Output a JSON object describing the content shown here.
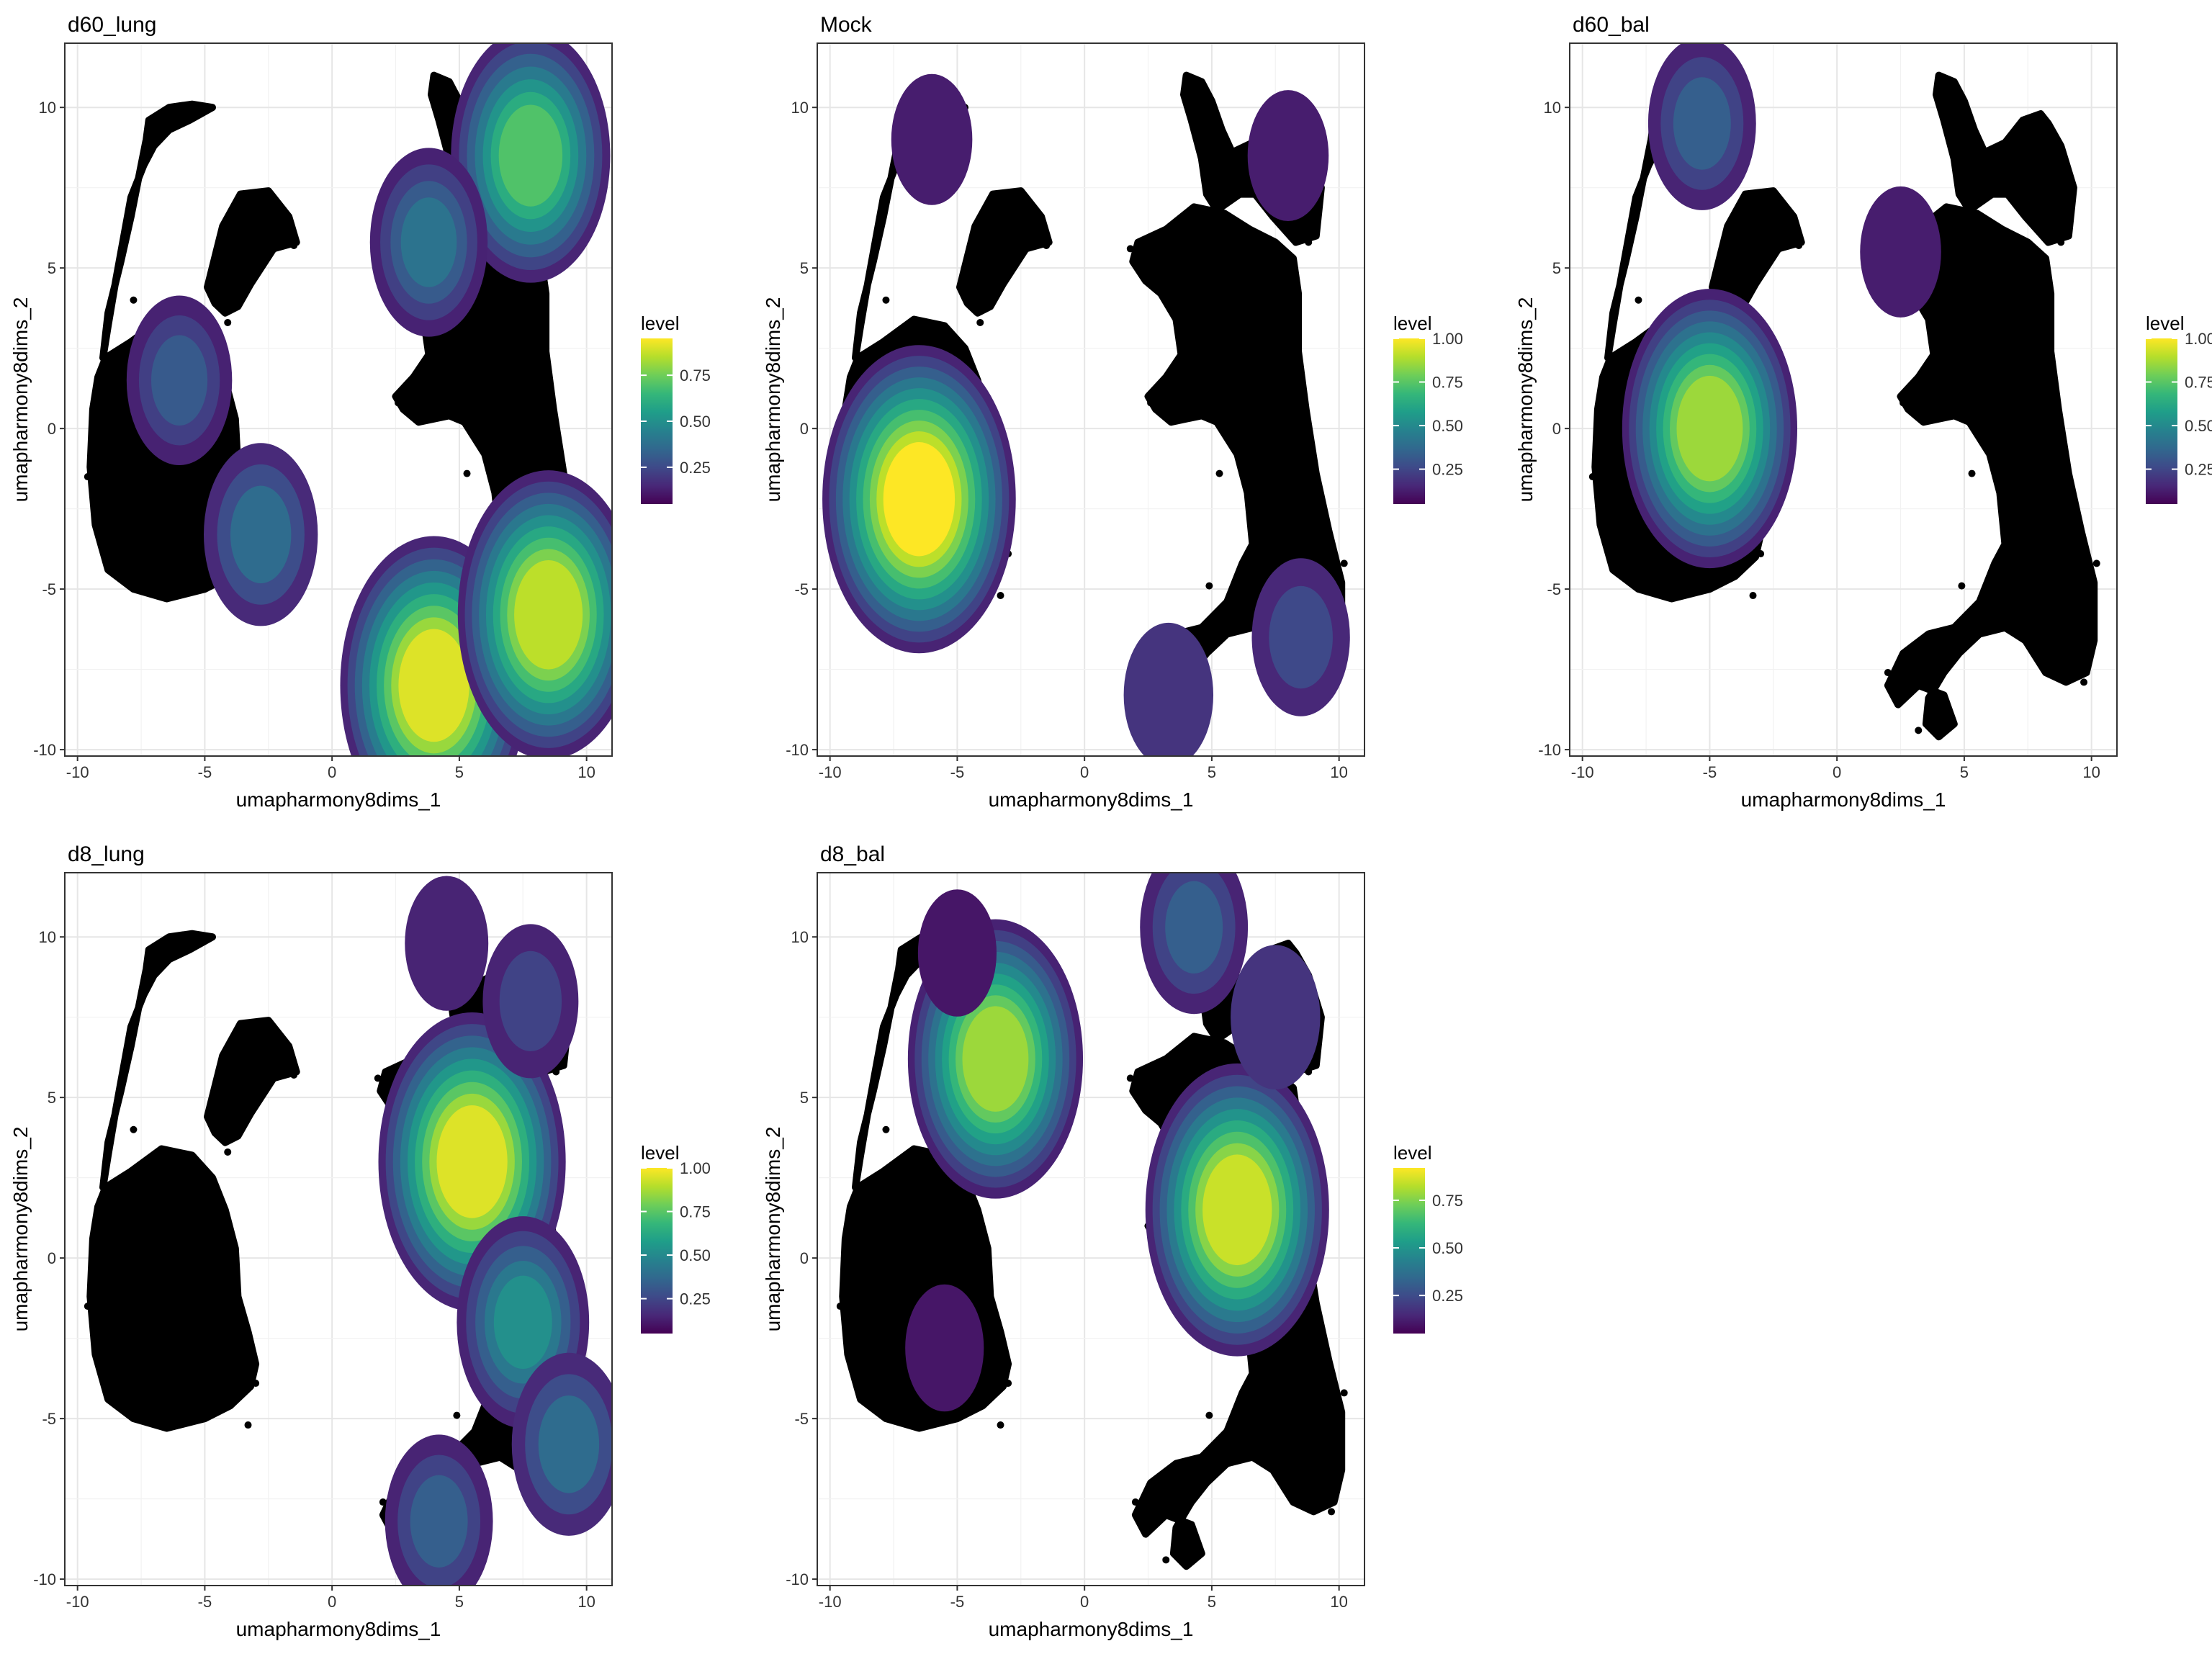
{
  "chart_data": [
    {
      "type": "scatter",
      "subtype": "umap-density-overlay",
      "title": "d60_lung",
      "xlabel": "umapharmony8dims_1",
      "ylabel": "umapharmony8dims_2",
      "xlim": [
        -10.5,
        11
      ],
      "ylim": [
        -10.2,
        12
      ],
      "xticks": [
        -10,
        -5,
        0,
        5,
        10
      ],
      "yticks": [
        -10,
        -5,
        0,
        5,
        10
      ],
      "legend": {
        "title": "level",
        "ticks": [
          0.25,
          0.5,
          0.75
        ],
        "tick_labels": [
          "0.25",
          "0.50",
          "0.75"
        ],
        "range": [
          0.05,
          0.95
        ],
        "placement": "right"
      },
      "density_peaks": [
        {
          "x": 4.0,
          "y": -8.0,
          "level": 0.95
        },
        {
          "x": 8.5,
          "y": -5.8,
          "level": 0.9
        },
        {
          "x": 7.8,
          "y": 8.5,
          "level": 0.72
        },
        {
          "x": 3.8,
          "y": 5.8,
          "level": 0.38
        },
        {
          "x": -2.8,
          "y": -3.3,
          "level": 0.35
        },
        {
          "x": -6.0,
          "y": 1.5,
          "level": 0.28
        }
      ]
    },
    {
      "type": "scatter",
      "subtype": "umap-density-overlay",
      "title": "Mock",
      "xlabel": "umapharmony8dims_1",
      "ylabel": "umapharmony8dims_2",
      "xlim": [
        -10.5,
        11
      ],
      "ylim": [
        -10.2,
        12
      ],
      "xticks": [
        -10,
        -5,
        0,
        5,
        10
      ],
      "yticks": [
        -10,
        -5,
        0,
        5,
        10
      ],
      "legend": {
        "title": "level",
        "ticks": [
          0.25,
          0.5,
          0.75,
          1.0
        ],
        "tick_labels": [
          "0.25",
          "0.50",
          "0.75",
          "1.00"
        ],
        "range": [
          0.05,
          1.0
        ],
        "placement": "right"
      },
      "density_peaks": [
        {
          "x": -6.5,
          "y": -2.2,
          "level": 1.0
        },
        {
          "x": 8.5,
          "y": -6.5,
          "level": 0.22
        },
        {
          "x": 3.3,
          "y": -8.3,
          "level": 0.15
        },
        {
          "x": 8.0,
          "y": 8.5,
          "level": 0.08
        },
        {
          "x": -6.0,
          "y": 9.0,
          "level": 0.08
        }
      ]
    },
    {
      "type": "scatter",
      "subtype": "umap-density-overlay",
      "title": "d60_bal",
      "xlabel": "umapharmony8dims_1",
      "ylabel": "umapharmony8dims_2",
      "xlim": [
        -10.5,
        11
      ],
      "ylim": [
        -10.2,
        12
      ],
      "xticks": [
        -10,
        -5,
        0,
        5,
        10
      ],
      "yticks": [
        -10,
        -5,
        0,
        5,
        10
      ],
      "legend": {
        "title": "level",
        "ticks": [
          0.25,
          0.5,
          0.75,
          1.0
        ],
        "tick_labels": [
          "0.25",
          "0.50",
          "0.75",
          "1.00"
        ],
        "range": [
          0.05,
          1.0
        ],
        "placement": "right"
      },
      "density_peaks": [
        {
          "x": -5.0,
          "y": 0.0,
          "level": 0.85
        },
        {
          "x": -5.3,
          "y": 9.5,
          "level": 0.3
        },
        {
          "x": 2.5,
          "y": 5.5,
          "level": 0.08
        }
      ]
    },
    {
      "type": "scatter",
      "subtype": "umap-density-overlay",
      "title": "d8_lung",
      "xlabel": "umapharmony8dims_1",
      "ylabel": "umapharmony8dims_2",
      "xlim": [
        -10.5,
        11
      ],
      "ylim": [
        -10.2,
        12
      ],
      "xticks": [
        -10,
        -5,
        0,
        5,
        10
      ],
      "yticks": [
        -10,
        -5,
        0,
        5,
        10
      ],
      "legend": {
        "title": "level",
        "ticks": [
          0.25,
          0.5,
          0.75,
          1.0
        ],
        "tick_labels": [
          "0.25",
          "0.50",
          "0.75",
          "1.00"
        ],
        "range": [
          0.05,
          1.0
        ],
        "placement": "right"
      },
      "density_peaks": [
        {
          "x": 5.5,
          "y": 3.0,
          "level": 0.95
        },
        {
          "x": 7.5,
          "y": -2.0,
          "level": 0.5
        },
        {
          "x": 9.3,
          "y": -5.8,
          "level": 0.35
        },
        {
          "x": 4.2,
          "y": -8.2,
          "level": 0.3
        },
        {
          "x": 7.8,
          "y": 8.0,
          "level": 0.2
        },
        {
          "x": 4.5,
          "y": 9.8,
          "level": 0.1
        }
      ]
    },
    {
      "type": "scatter",
      "subtype": "umap-density-overlay",
      "title": "d8_bal",
      "xlabel": "umapharmony8dims_1",
      "ylabel": "umapharmony8dims_2",
      "xlim": [
        -10.5,
        11
      ],
      "ylim": [
        -10.2,
        12
      ],
      "xticks": [
        -10,
        -5,
        0,
        5,
        10
      ],
      "yticks": [
        -10,
        -5,
        0,
        5,
        10
      ],
      "legend": {
        "title": "level",
        "ticks": [
          0.25,
          0.5,
          0.75
        ],
        "tick_labels": [
          "0.25",
          "0.50",
          "0.75"
        ],
        "range": [
          0.05,
          0.92
        ],
        "placement": "right"
      },
      "density_peaks": [
        {
          "x": 6.0,
          "y": 1.5,
          "level": 0.92
        },
        {
          "x": -3.5,
          "y": 6.2,
          "level": 0.85
        },
        {
          "x": 4.3,
          "y": 10.3,
          "level": 0.3
        },
        {
          "x": 7.5,
          "y": 7.5,
          "level": 0.15
        },
        {
          "x": -5.5,
          "y": -2.8,
          "level": 0.06
        },
        {
          "x": -5.0,
          "y": 9.5,
          "level": 0.06
        }
      ]
    }
  ],
  "colors": {
    "viridis": [
      "#440154",
      "#482878",
      "#3e4a89",
      "#31688e",
      "#26828e",
      "#1f9e89",
      "#35b779",
      "#6ece58",
      "#b5de2b",
      "#fde725"
    ],
    "points": "#000000",
    "panel_border": "#333333",
    "grid": "#ebebeb"
  }
}
